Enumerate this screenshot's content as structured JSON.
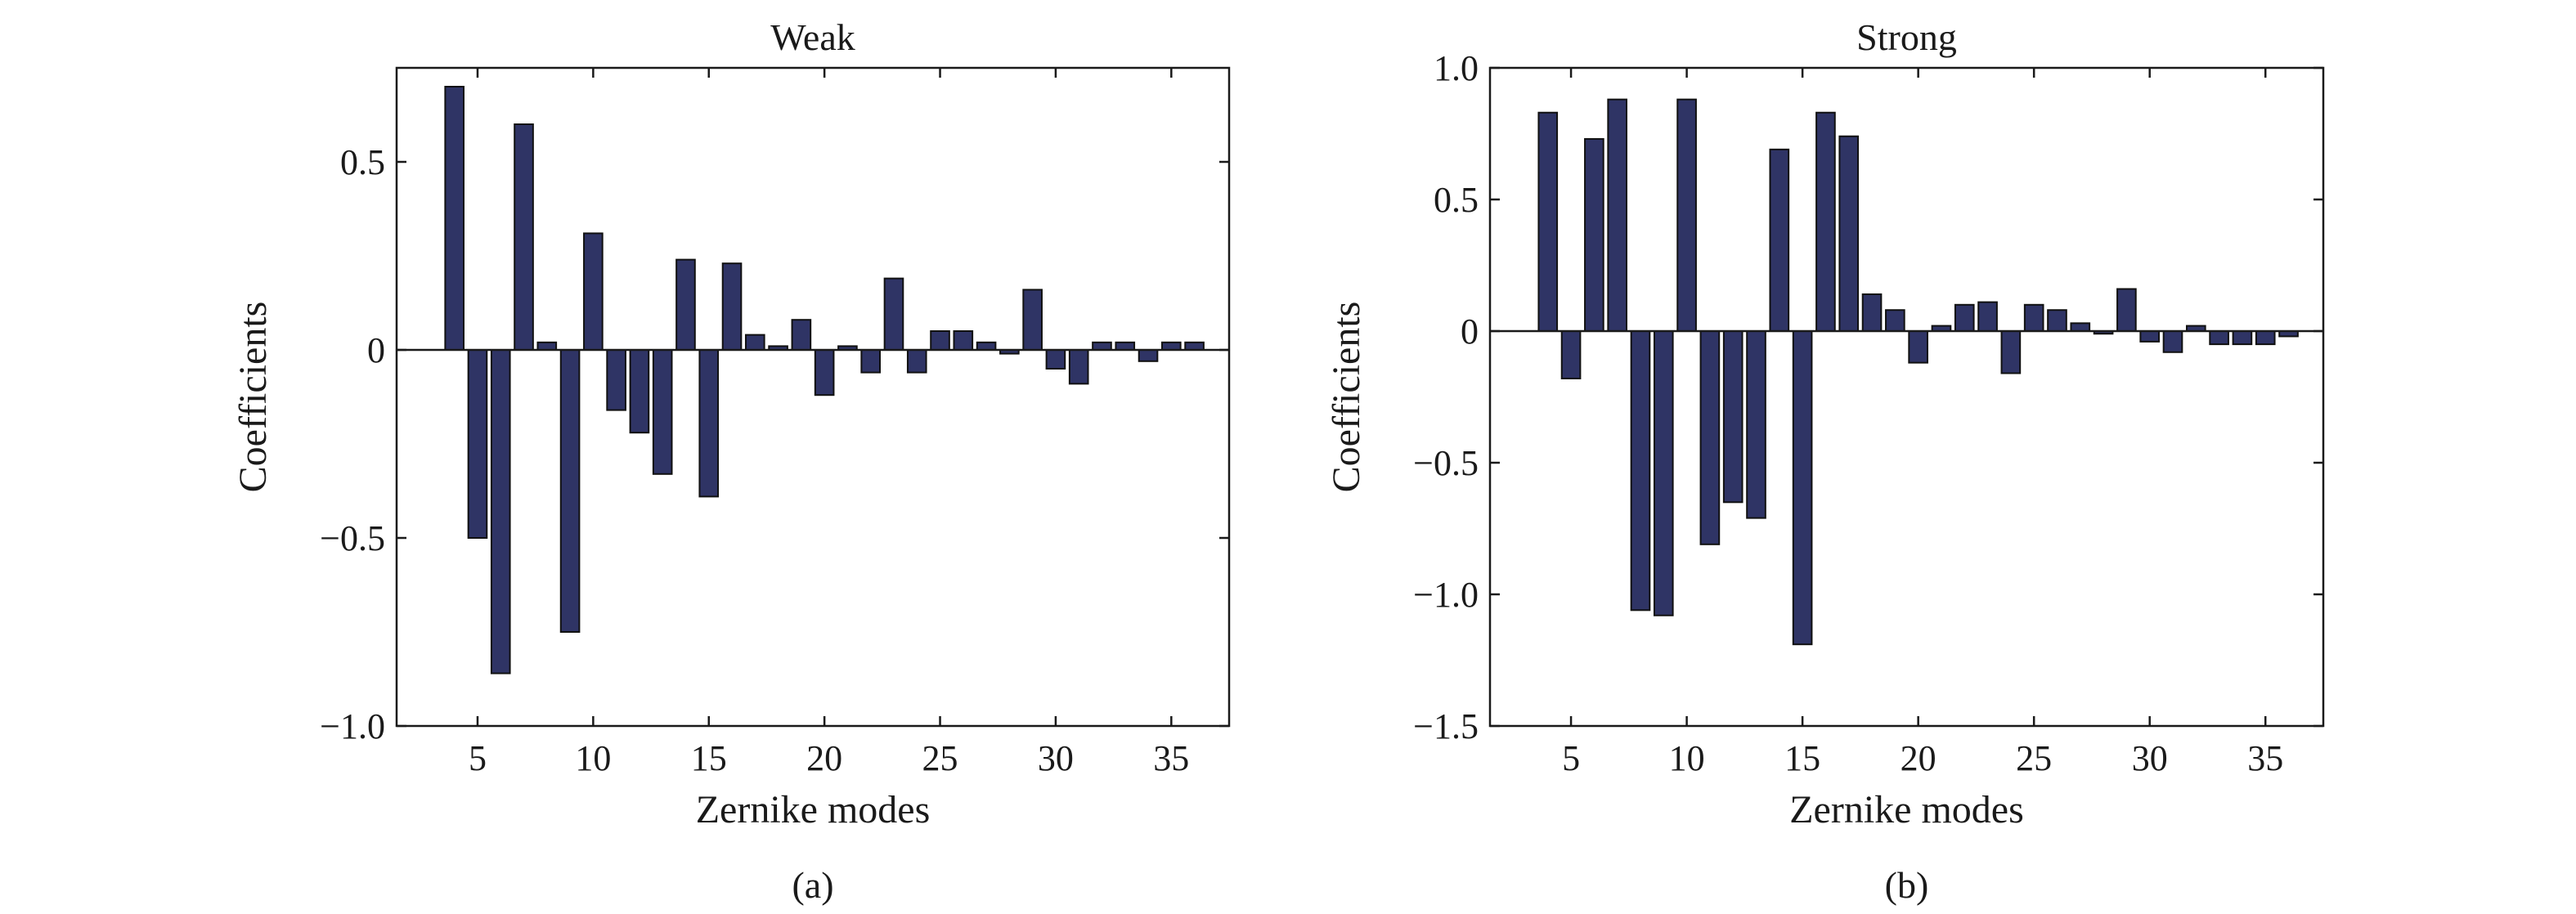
{
  "colors": {
    "bar_fill": "#2f3465",
    "axis": "#1a1a1a",
    "background": "#ffffff"
  },
  "chart_data": [
    {
      "type": "bar",
      "title": "Weak",
      "xlabel": "Zernike modes",
      "ylabel": "Coefficients",
      "caption": "(a)",
      "xlim": [
        1.5,
        37.5
      ],
      "ylim": [
        -1.0,
        0.75
      ],
      "xticks": [
        5,
        10,
        15,
        20,
        25,
        30,
        35
      ],
      "xtick_labels": [
        "5",
        "10",
        "15",
        "20",
        "25",
        "30",
        "35"
      ],
      "yticks": [
        -1.0,
        -0.5,
        0,
        0.5
      ],
      "ytick_labels": [
        "−1.0",
        "−0.5",
        "0",
        "0.5"
      ],
      "grid": false,
      "x": [
        4,
        5,
        6,
        7,
        8,
        9,
        10,
        11,
        12,
        13,
        14,
        15,
        16,
        17,
        18,
        19,
        20,
        21,
        22,
        23,
        24,
        25,
        26,
        27,
        28,
        29,
        30,
        31,
        32,
        33,
        34,
        35,
        36
      ],
      "values": [
        0.7,
        -0.5,
        -0.86,
        0.6,
        0.02,
        -0.75,
        0.31,
        -0.16,
        -0.22,
        -0.33,
        0.24,
        -0.39,
        0.23,
        0.04,
        0.01,
        0.08,
        -0.12,
        0.01,
        -0.06,
        0.19,
        -0.06,
        0.05,
        0.05,
        0.02,
        -0.01,
        0.16,
        -0.05,
        -0.09,
        0.02,
        0.02,
        -0.03,
        0.02,
        0.02
      ]
    },
    {
      "type": "bar",
      "title": "Strong",
      "xlabel": "Zernike modes",
      "ylabel": "Coefficients",
      "caption": "(b)",
      "xlim": [
        1.5,
        37.5
      ],
      "ylim": [
        -1.5,
        1.0
      ],
      "xticks": [
        5,
        10,
        15,
        20,
        25,
        30,
        35
      ],
      "xtick_labels": [
        "5",
        "10",
        "15",
        "20",
        "25",
        "30",
        "35"
      ],
      "yticks": [
        -1.5,
        -1.0,
        -0.5,
        0,
        0.5,
        1.0
      ],
      "ytick_labels": [
        "−1.5",
        "−1.0",
        "−0.5",
        "0",
        "0.5",
        "1.0"
      ],
      "grid": false,
      "x": [
        4,
        5,
        6,
        7,
        8,
        9,
        10,
        11,
        12,
        13,
        14,
        15,
        16,
        17,
        18,
        19,
        20,
        21,
        22,
        23,
        24,
        25,
        26,
        27,
        28,
        29,
        30,
        31,
        32,
        33,
        34,
        35,
        36
      ],
      "values": [
        0.83,
        -0.18,
        0.73,
        0.88,
        -1.06,
        -1.08,
        0.88,
        -0.81,
        -0.65,
        -0.71,
        0.69,
        -1.19,
        0.83,
        0.74,
        0.14,
        0.08,
        -0.12,
        0.02,
        0.1,
        0.11,
        -0.16,
        0.1,
        0.08,
        0.03,
        -0.01,
        0.16,
        -0.04,
        -0.08,
        0.02,
        -0.05,
        -0.05,
        -0.05,
        -0.02
      ]
    }
  ]
}
